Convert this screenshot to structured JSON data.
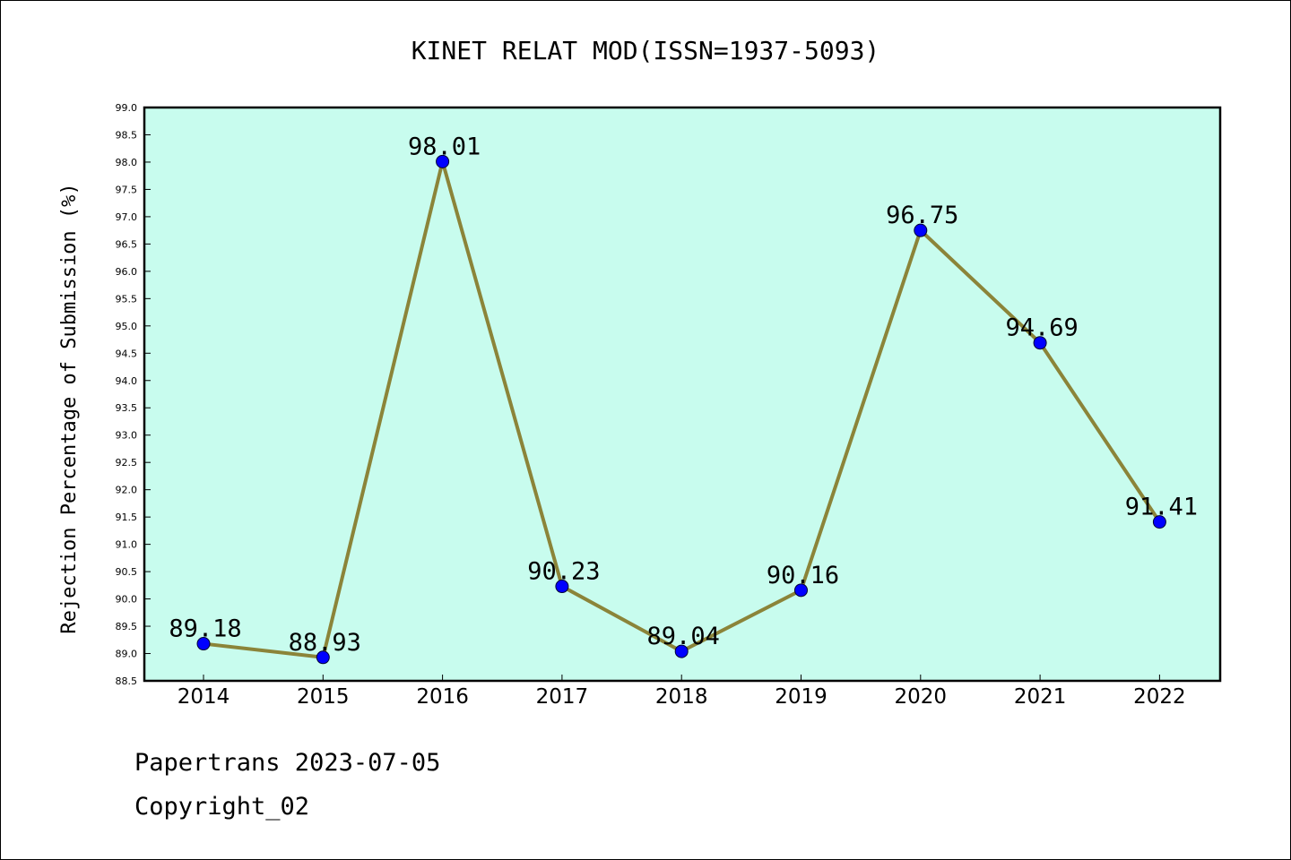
{
  "chart_data": {
    "type": "line",
    "title": "KINET RELAT MOD(ISSN=1937-5093)",
    "xlabel": "",
    "ylabel": "Rejection Percentage of Submission (%)",
    "categories": [
      "2014",
      "2015",
      "2016",
      "2017",
      "2018",
      "2019",
      "2020",
      "2021",
      "2022"
    ],
    "series": [
      {
        "values": [
          89.18,
          88.93,
          98.01,
          90.23,
          89.04,
          90.16,
          96.75,
          94.69,
          91.41
        ]
      }
    ],
    "data_labels": [
      "89.18",
      "88.93",
      "98.01",
      "90.23",
      "89.04",
      "90.16",
      "96.75",
      "94.69",
      "91.41"
    ],
    "ylim": [
      88.5,
      99.0
    ],
    "yticks": [
      "88.5",
      "89.0",
      "89.5",
      "90.0",
      "90.5",
      "91.0",
      "91.5",
      "92.0",
      "92.5",
      "93.0",
      "93.5",
      "94.0",
      "94.5",
      "95.0",
      "95.5",
      "96.0",
      "96.5",
      "97.0",
      "97.5",
      "98.0",
      "98.5",
      "99.0"
    ],
    "grid": false,
    "colors": {
      "plot_background": "#c8fcee",
      "line": "#8b8439",
      "marker": "#0000ff"
    }
  },
  "footer": {
    "line1": "Papertrans 2023-07-05",
    "line2": "Copyright_02"
  }
}
